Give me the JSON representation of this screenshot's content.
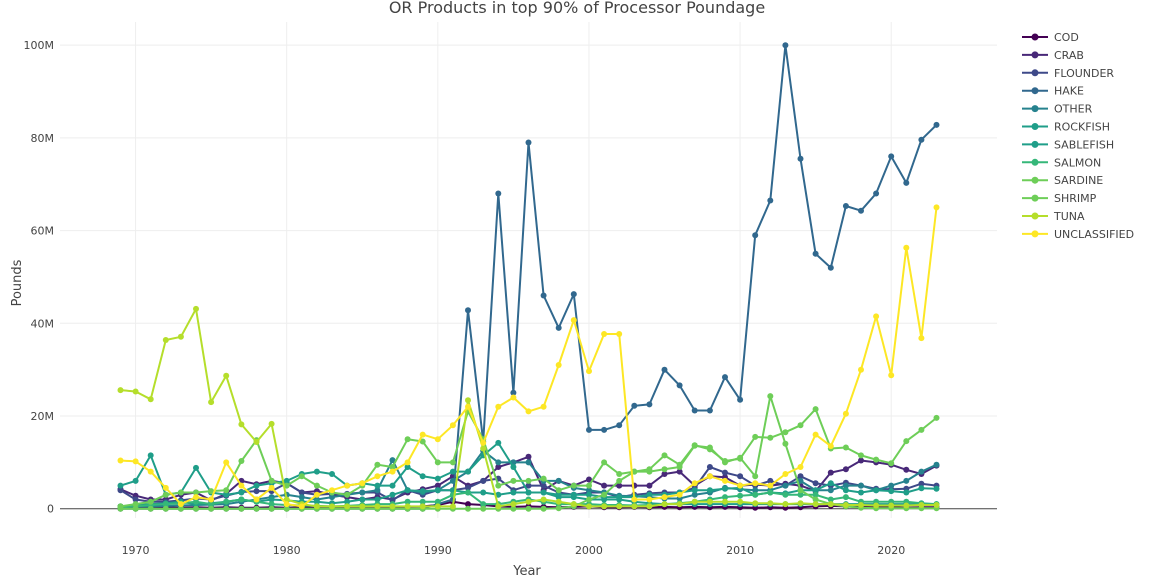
{
  "chart_data": {
    "type": "line",
    "title": "OR Products in top 90% of Processor Poundage",
    "xlabel": "Year",
    "ylabel": "Pounds",
    "x_range": [
      1965,
      2027
    ],
    "y_range": [
      -2000000,
      105000000
    ],
    "x_ticks": [
      1970,
      1980,
      1990,
      2000,
      2010,
      2020
    ],
    "x_tick_labels": [
      "1970",
      "1980",
      "1990",
      "2000",
      "2010",
      "2020"
    ],
    "y_ticks": [
      0,
      20000000,
      40000000,
      60000000,
      80000000,
      100000000
    ],
    "y_tick_labels": [
      "0",
      "20M",
      "40M",
      "60M",
      "80M",
      "100M"
    ],
    "grid": true,
    "legend_position": "right",
    "x": [
      1969,
      1970,
      1971,
      1972,
      1973,
      1974,
      1975,
      1976,
      1977,
      1978,
      1979,
      1980,
      1981,
      1982,
      1983,
      1984,
      1985,
      1986,
      1987,
      1988,
      1989,
      1990,
      1991,
      1992,
      1993,
      1994,
      1995,
      1996,
      1997,
      1998,
      1999,
      2000,
      2001,
      2002,
      2003,
      2004,
      2005,
      2006,
      2007,
      2008,
      2009,
      2010,
      2011,
      2012,
      2013,
      2014,
      2015,
      2016,
      2017,
      2018,
      2019,
      2020,
      2021,
      2022,
      2023
    ],
    "series": [
      {
        "name": "COD",
        "color": "#440154",
        "values": [
          200000,
          300000,
          200000,
          300000,
          200000,
          300000,
          200000,
          300000,
          200000,
          200000,
          300000,
          200000,
          300000,
          200000,
          300000,
          200000,
          200000,
          300000,
          200000,
          400000,
          500000,
          800000,
          1500000,
          1000000,
          800000,
          500000,
          400000,
          500000,
          400000,
          300000,
          400000,
          500000,
          300000,
          300000,
          400000,
          300000,
          400000,
          300000,
          400000,
          300000,
          400000,
          300000,
          200000,
          300000,
          200000,
          300000,
          500000,
          600000,
          500000,
          400000,
          300000,
          300000,
          200000,
          300000,
          300000
        ]
      },
      {
        "name": "CRAB",
        "color": "#482878",
        "values": [
          4200000,
          2800000,
          2000000,
          2000000,
          3000000,
          3500000,
          1800000,
          3200000,
          6000000,
          5300000,
          6000000,
          5500000,
          3500000,
          3800000,
          3000000,
          2500000,
          2000000,
          2500000,
          2000000,
          3500000,
          4200000,
          5000000,
          7000000,
          5000000,
          6000000,
          9000000,
          10000000,
          11200000,
          4000000,
          6000000,
          5000000,
          6300000,
          5000000,
          5000000,
          5000000,
          5000000,
          7500000,
          8000000,
          5000000,
          7000000,
          6800000,
          5000000,
          5200000,
          5000000,
          5400000,
          5000000,
          3800000,
          7800000,
          8500000,
          10400000,
          10000000,
          9500000,
          8400000,
          7500000,
          9300000
        ]
      },
      {
        "name": "FLOUNDER",
        "color": "#3e4989",
        "values": [
          4000000,
          2000000,
          1500000,
          1500000,
          1800000,
          2200000,
          2000000,
          2800000,
          3600000,
          3800000,
          3800000,
          5500000,
          3500000,
          3000000,
          3200000,
          3200000,
          3500000,
          3500000,
          1800000,
          4000000,
          3000000,
          4000000,
          4000000,
          4500000,
          6000000,
          6500000,
          4000000,
          5000000,
          5000000,
          3500000,
          3000000,
          3500000,
          3500000,
          2500000,
          3000000,
          3300000,
          3500000,
          3500000,
          4500000,
          9000000,
          7800000,
          7000000,
          5000000,
          6000000,
          5000000,
          7000000,
          5500000,
          5000000,
          5600000,
          5000000,
          4300000,
          4200000,
          4300000,
          5400000,
          5000000
        ]
      },
      {
        "name": "HAKE",
        "color": "#31688e",
        "values": [
          0,
          0,
          0,
          0,
          0,
          0,
          0,
          0,
          0,
          0,
          0,
          0,
          0,
          0,
          0,
          0,
          0,
          0,
          0,
          0,
          0,
          1000000,
          2000000,
          42800000,
          14500000,
          68000000,
          25000000,
          79000000,
          46000000,
          39000000,
          46300000,
          17000000,
          17000000,
          18000000,
          22200000,
          22500000,
          30000000,
          26600000,
          21200000,
          21200000,
          28400000,
          23500000,
          59000000,
          66500000,
          100000000,
          75500000,
          55000000,
          52000000,
          65300000,
          64300000,
          68000000,
          76000000,
          70300000,
          79600000,
          82800000
        ]
      },
      {
        "name": "OTHER",
        "color": "#26828e",
        "values": [
          500000,
          500000,
          500000,
          600000,
          700000,
          800000,
          900000,
          1000000,
          1500000,
          2000000,
          2500000,
          3000000,
          2500000,
          2000000,
          2500000,
          3000000,
          3500000,
          4000000,
          10500000,
          4000000,
          3500000,
          4000000,
          6000000,
          8000000,
          12500000,
          10000000,
          10000000,
          10000000,
          6000000,
          6000000,
          4500000,
          4000000,
          3500000,
          2800000,
          2700000,
          2500000,
          2200000,
          2200000,
          3000000,
          3500000,
          4500000,
          4200000,
          4000000,
          4000000,
          5000000,
          6000000,
          4000000,
          4000000,
          5000000,
          5000000,
          4000000,
          5000000,
          6000000,
          8000000,
          9500000
        ]
      },
      {
        "name": "ROCKFISH",
        "color": "#1f9e89",
        "values": [
          5000000,
          6000000,
          11500000,
          3000000,
          3500000,
          8800000,
          3500000,
          3000000,
          3500000,
          5000000,
          5500000,
          6000000,
          7500000,
          8000000,
          7500000,
          5000000,
          5500000,
          5000000,
          5000000,
          9000000,
          7000000,
          6500000,
          8000000,
          8000000,
          11500000,
          14200000,
          9000000,
          3500000,
          3500000,
          2500000,
          2500000,
          2000000,
          2000000,
          2000000,
          1500000,
          1200000,
          1000000,
          1000000,
          1000000,
          1000000,
          1000000,
          1000000,
          1000000,
          1000000,
          1000000,
          1000000,
          1000000,
          1000000,
          1000000,
          1000000,
          1000000,
          1000000,
          1000000,
          1000000,
          1000000
        ]
      },
      {
        "name": "SABLEFISH",
        "color": "#1f9e89",
        "values": [
          500000,
          800000,
          1000000,
          1200000,
          1500000,
          1000000,
          1200000,
          1500000,
          2000000,
          1500000,
          2000000,
          1800000,
          1500000,
          1500000,
          1200000,
          1500000,
          2000000,
          2000000,
          3000000,
          4000000,
          3800000,
          4000000,
          4000000,
          3500000,
          3500000,
          3000000,
          3500000,
          3500000,
          3500000,
          3000000,
          3000000,
          3000000,
          2500000,
          2500000,
          2500000,
          3000000,
          3000000,
          3500000,
          4000000,
          4000000,
          4300000,
          4500000,
          3000000,
          3500000,
          3300000,
          4000000,
          4000000,
          5500000,
          4000000,
          3500000,
          4000000,
          3800000,
          3500000,
          4400000,
          4300000
        ]
      },
      {
        "name": "SALMON",
        "color": "#35b779",
        "values": [
          300000,
          500000,
          800000,
          1000000,
          1200000,
          1500000,
          1000000,
          1500000,
          2000000,
          1500000,
          1000000,
          800000,
          700000,
          600000,
          500000,
          600000,
          800000,
          1000000,
          1000000,
          1500000,
          1500000,
          1500000,
          3000000,
          3500000,
          1000000,
          1000000,
          1500000,
          2000000,
          1500000,
          1000000,
          1000000,
          1000000,
          800000,
          800000,
          700000,
          800000,
          1000000,
          1200000,
          1500000,
          2000000,
          2500000,
          2800000,
          3000000,
          3500000,
          3000000,
          3000000,
          3000000,
          2000000,
          2500000,
          1500000,
          1500000,
          1500000,
          1500000,
          1200000,
          1000000
        ]
      },
      {
        "name": "SARDINE",
        "color": "#6ece58",
        "values": [
          0,
          0,
          0,
          0,
          0,
          0,
          0,
          0,
          0,
          0,
          0,
          0,
          0,
          0,
          0,
          0,
          0,
          0,
          0,
          0,
          0,
          0,
          0,
          0,
          0,
          0,
          0,
          0,
          0,
          100000,
          500000,
          2000000,
          3000000,
          6000000,
          8000000,
          8000000,
          8500000,
          9000000,
          13600000,
          13200000,
          10000000,
          11000000,
          7000000,
          24300000,
          14000000,
          4000000,
          2000000,
          1000000,
          500000,
          200000,
          100000,
          100000,
          100000,
          100000,
          100000
        ]
      },
      {
        "name": "SHRIMP",
        "color": "#6ece58",
        "values": [
          500000,
          1000000,
          1500000,
          3000000,
          3500000,
          3500000,
          3800000,
          4000000,
          10300000,
          14800000,
          6000000,
          5000000,
          7000000,
          5000000,
          3500000,
          3000000,
          5000000,
          9500000,
          9000000,
          15000000,
          14500000,
          10000000,
          10000000,
          21000000,
          15000000,
          5000000,
          6000000,
          6000000,
          6500000,
          4000000,
          5000000,
          5000000,
          10000000,
          7500000,
          8000000,
          8500000,
          11500000,
          9500000,
          13700000,
          12800000,
          10300000,
          10800000,
          15500000,
          15300000,
          16500000,
          18000000,
          21500000,
          13000000,
          13200000,
          11500000,
          10600000,
          9800000,
          14600000,
          17000000,
          19600000
        ]
      },
      {
        "name": "TUNA",
        "color": "#b5de2b",
        "values": [
          25600000,
          25300000,
          23600000,
          36400000,
          37100000,
          43100000,
          23000000,
          28700000,
          18200000,
          14400000,
          18300000,
          2000000,
          1000000,
          500000,
          500000,
          500000,
          500000,
          500000,
          500000,
          500000,
          500000,
          500000,
          500000,
          23400000,
          13000000,
          500000,
          1000000,
          1500000,
          2000000,
          1500000,
          1000000,
          500000,
          500000,
          500000,
          500000,
          500000,
          1000000,
          1000000,
          1500000,
          1500000,
          1500000,
          1500000,
          1200000,
          1200000,
          1000000,
          1200000,
          1000000,
          1000000,
          800000,
          800000,
          700000,
          700000,
          700000,
          800000,
          800000
        ]
      },
      {
        "name": "UNCLASSIFIED",
        "color": "#fde725",
        "values": [
          10400000,
          10200000,
          8000000,
          4500000,
          1000000,
          2500000,
          2000000,
          10000000,
          5000000,
          2000000,
          4500000,
          1000000,
          500000,
          3000000,
          4000000,
          5000000,
          5500000,
          7000000,
          8000000,
          10000000,
          16000000,
          15000000,
          18000000,
          22000000,
          14200000,
          22000000,
          24000000,
          21000000,
          22000000,
          31000000,
          40700000,
          29700000,
          37700000,
          37700000,
          2000000,
          2000000,
          2500000,
          3000000,
          5500000,
          7000000,
          6000000,
          5000000,
          5500000,
          5000000,
          7500000,
          9000000,
          16000000,
          13500000,
          20500000,
          30000000,
          41500000,
          28800000,
          56300000,
          36800000,
          65000000
        ]
      }
    ]
  }
}
